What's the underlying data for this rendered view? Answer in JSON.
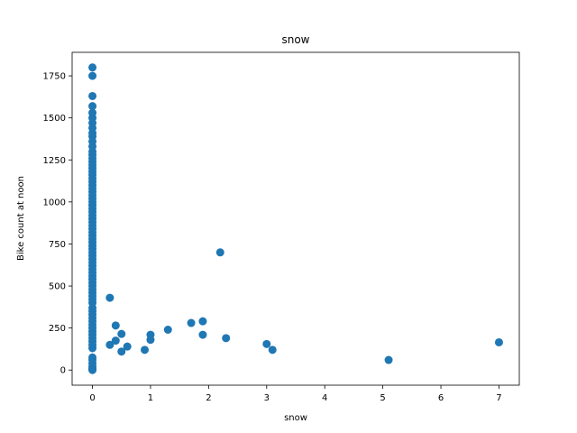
{
  "chart_data": {
    "type": "scatter",
    "title": "snow",
    "xlabel": "snow",
    "ylabel": "Bike count at noon",
    "xlim": [
      -0.35,
      7.35
    ],
    "ylim": [
      -90,
      1890
    ],
    "xticks": [
      0,
      1,
      2,
      3,
      4,
      5,
      6,
      7
    ],
    "yticks": [
      0,
      250,
      500,
      750,
      1000,
      1250,
      1500,
      1750
    ],
    "grid": false,
    "legend": "none",
    "marker_color": "#1f77b4",
    "points": [
      [
        0,
        0
      ],
      [
        0,
        5
      ],
      [
        0,
        10
      ],
      [
        0,
        20
      ],
      [
        0,
        40
      ],
      [
        0,
        60
      ],
      [
        0,
        75
      ],
      [
        0,
        130
      ],
      [
        0,
        150
      ],
      [
        0,
        170
      ],
      [
        0,
        190
      ],
      [
        0,
        210
      ],
      [
        0,
        230
      ],
      [
        0,
        250
      ],
      [
        0,
        270
      ],
      [
        0,
        290
      ],
      [
        0,
        310
      ],
      [
        0,
        330
      ],
      [
        0,
        350
      ],
      [
        0,
        370
      ],
      [
        0,
        400
      ],
      [
        0,
        420
      ],
      [
        0,
        440
      ],
      [
        0,
        460
      ],
      [
        0,
        480
      ],
      [
        0,
        500
      ],
      [
        0,
        520
      ],
      [
        0,
        540
      ],
      [
        0,
        560
      ],
      [
        0,
        580
      ],
      [
        0,
        600
      ],
      [
        0,
        620
      ],
      [
        0,
        640
      ],
      [
        0,
        660
      ],
      [
        0,
        680
      ],
      [
        0,
        700
      ],
      [
        0,
        720
      ],
      [
        0,
        740
      ],
      [
        0,
        760
      ],
      [
        0,
        780
      ],
      [
        0,
        800
      ],
      [
        0,
        820
      ],
      [
        0,
        840
      ],
      [
        0,
        860
      ],
      [
        0,
        880
      ],
      [
        0,
        900
      ],
      [
        0,
        920
      ],
      [
        0,
        940
      ],
      [
        0,
        960
      ],
      [
        0,
        980
      ],
      [
        0,
        1000
      ],
      [
        0,
        1020
      ],
      [
        0,
        1040
      ],
      [
        0,
        1060
      ],
      [
        0,
        1080
      ],
      [
        0,
        1100
      ],
      [
        0,
        1120
      ],
      [
        0,
        1140
      ],
      [
        0,
        1160
      ],
      [
        0,
        1180
      ],
      [
        0,
        1200
      ],
      [
        0,
        1220
      ],
      [
        0,
        1240
      ],
      [
        0,
        1260
      ],
      [
        0,
        1280
      ],
      [
        0,
        1300
      ],
      [
        0,
        1330
      ],
      [
        0,
        1360
      ],
      [
        0,
        1390
      ],
      [
        0,
        1410
      ],
      [
        0,
        1440
      ],
      [
        0,
        1470
      ],
      [
        0,
        1500
      ],
      [
        0,
        1530
      ],
      [
        0,
        1570
      ],
      [
        0,
        1630
      ],
      [
        0,
        1750
      ],
      [
        0,
        1800
      ],
      [
        0.3,
        430
      ],
      [
        0.3,
        150
      ],
      [
        0.4,
        265
      ],
      [
        0.4,
        175
      ],
      [
        0.5,
        215
      ],
      [
        0.5,
        110
      ],
      [
        0.6,
        140
      ],
      [
        0.9,
        120
      ],
      [
        1.0,
        210
      ],
      [
        1.0,
        180
      ],
      [
        1.3,
        240
      ],
      [
        1.7,
        280
      ],
      [
        1.9,
        290
      ],
      [
        1.9,
        210
      ],
      [
        2.2,
        700
      ],
      [
        2.3,
        190
      ],
      [
        3.0,
        155
      ],
      [
        3.1,
        120
      ],
      [
        5.1,
        60
      ],
      [
        7.0,
        165
      ]
    ]
  }
}
